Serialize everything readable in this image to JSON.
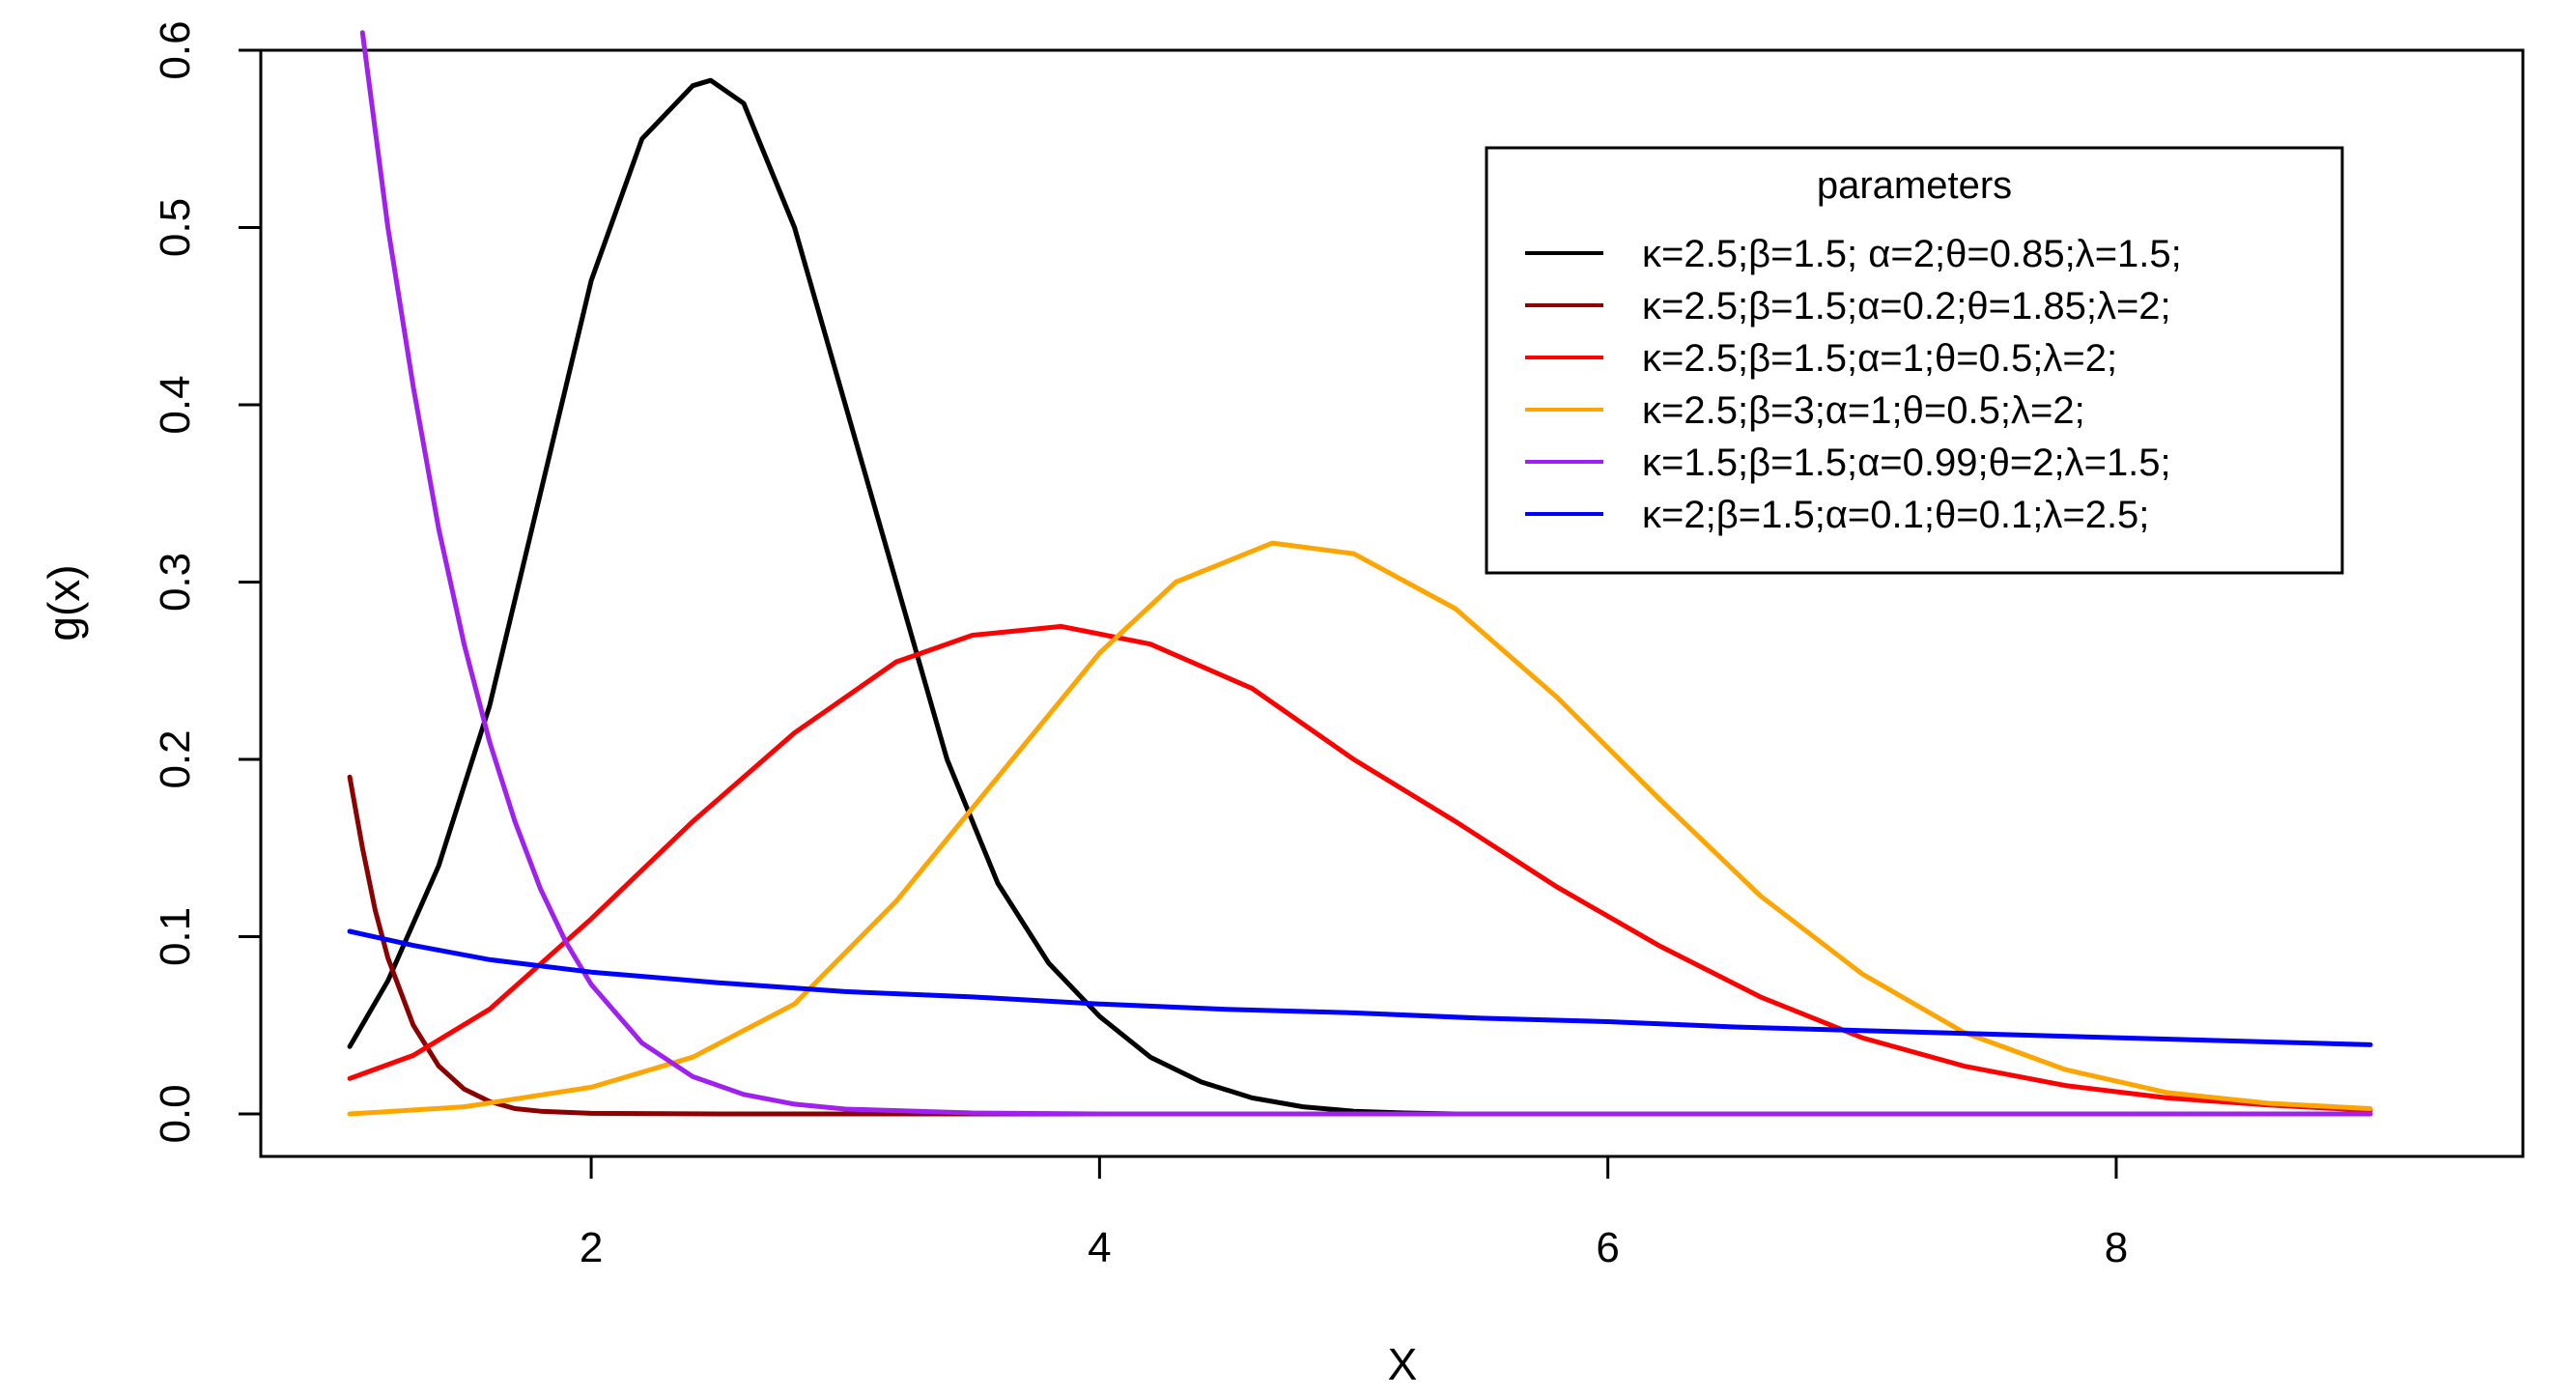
{
  "chart_data": {
    "type": "line",
    "title": "",
    "xlabel": "X",
    "ylabel": "g(x)",
    "xlim": [
      0.7,
      9.6
    ],
    "ylim": [
      -0.024,
      0.6
    ],
    "x_ticks": [
      2,
      4,
      6,
      8
    ],
    "x_tick_labels": [
      "2",
      "4",
      "6",
      "8"
    ],
    "y_ticks": [
      0.0,
      0.1,
      0.2,
      0.3,
      0.4,
      0.5,
      0.6
    ],
    "y_tick_labels": [
      "0.0",
      "0.1",
      "0.2",
      "0.3",
      "0.4",
      "0.5",
      "0.6"
    ],
    "legend": {
      "title": "parameters",
      "position": "top-right"
    },
    "series": [
      {
        "name": "κ=2.5;β=1.5; α=2;θ=0.85;λ=1.5;",
        "color": "#000000",
        "x": [
          1.05,
          1.2,
          1.4,
          1.6,
          1.8,
          2.0,
          2.2,
          2.4,
          2.47,
          2.6,
          2.8,
          3.0,
          3.2,
          3.4,
          3.6,
          3.8,
          4.0,
          4.2,
          4.4,
          4.6,
          4.8,
          5.0,
          5.2,
          5.4
        ],
        "y": [
          0.038,
          0.075,
          0.14,
          0.23,
          0.35,
          0.47,
          0.55,
          0.58,
          0.583,
          0.57,
          0.5,
          0.4,
          0.3,
          0.2,
          0.13,
          0.085,
          0.055,
          0.032,
          0.018,
          0.009,
          0.004,
          0.0015,
          0.0005,
          0.0
        ]
      },
      {
        "name": "κ=2.5;β=1.5;α=0.2;θ=1.85;λ=2;",
        "color": "#8B0000",
        "x": [
          1.05,
          1.1,
          1.15,
          1.2,
          1.3,
          1.4,
          1.5,
          1.6,
          1.7,
          1.8,
          2.0,
          2.5,
          3.0,
          4.0,
          5.0,
          6.0,
          7.0,
          8.0,
          9.0
        ],
        "y": [
          0.19,
          0.15,
          0.115,
          0.088,
          0.05,
          0.027,
          0.014,
          0.007,
          0.003,
          0.0015,
          0.0003,
          0.0,
          0.0,
          0.0,
          0.0,
          0.0,
          0.0,
          0.0,
          0.0
        ]
      },
      {
        "name": "κ=2.5;β=1.5;α=1;θ=0.5;λ=2;",
        "color": "#FF0000",
        "x": [
          1.05,
          1.3,
          1.6,
          2.0,
          2.4,
          2.8,
          3.2,
          3.5,
          3.85,
          4.2,
          4.6,
          5.0,
          5.4,
          5.8,
          6.2,
          6.6,
          7.0,
          7.4,
          7.8,
          8.2,
          8.6,
          9.0
        ],
        "y": [
          0.02,
          0.033,
          0.059,
          0.11,
          0.165,
          0.215,
          0.255,
          0.27,
          0.275,
          0.265,
          0.24,
          0.2,
          0.165,
          0.128,
          0.095,
          0.066,
          0.043,
          0.027,
          0.016,
          0.009,
          0.005,
          0.002
        ]
      },
      {
        "name": "κ=2.5;β=3;α=1;θ=0.5;λ=2;",
        "color": "#FFA500",
        "x": [
          1.05,
          1.5,
          2.0,
          2.4,
          2.8,
          3.2,
          3.6,
          4.0,
          4.3,
          4.68,
          5.0,
          5.4,
          5.8,
          6.2,
          6.6,
          7.0,
          7.4,
          7.8,
          8.2,
          8.6,
          9.0
        ],
        "y": [
          0.0,
          0.004,
          0.015,
          0.032,
          0.062,
          0.12,
          0.19,
          0.26,
          0.3,
          0.322,
          0.316,
          0.285,
          0.235,
          0.178,
          0.123,
          0.079,
          0.046,
          0.025,
          0.012,
          0.006,
          0.003
        ]
      },
      {
        "name": "κ=1.5;β=1.5;α=0.99;θ=2;λ=1.5;",
        "color": "#A020F0",
        "x": [
          1.1,
          1.2,
          1.3,
          1.4,
          1.5,
          1.6,
          1.7,
          1.8,
          1.9,
          2.0,
          2.2,
          2.4,
          2.6,
          2.8,
          3.0,
          3.5,
          4.0,
          5.0,
          6.0,
          7.0,
          8.0,
          9.0
        ],
        "y": [
          0.61,
          0.5,
          0.41,
          0.33,
          0.265,
          0.21,
          0.165,
          0.127,
          0.097,
          0.073,
          0.04,
          0.021,
          0.011,
          0.0055,
          0.0027,
          0.0005,
          0.0,
          0.0,
          0.0,
          0.0,
          0.0,
          0.0
        ]
      },
      {
        "name": "κ=2;β=1.5;α=0.1;θ=0.1;λ=2.5;",
        "color": "#0000FF",
        "x": [
          1.05,
          1.3,
          1.6,
          2.0,
          2.5,
          3.0,
          3.5,
          4.0,
          4.5,
          5.0,
          5.5,
          6.0,
          6.5,
          7.0,
          7.5,
          8.0,
          8.5,
          9.0
        ],
        "y": [
          0.103,
          0.095,
          0.087,
          0.08,
          0.074,
          0.069,
          0.066,
          0.062,
          0.059,
          0.057,
          0.054,
          0.052,
          0.049,
          0.047,
          0.045,
          0.043,
          0.041,
          0.039
        ]
      }
    ]
  }
}
